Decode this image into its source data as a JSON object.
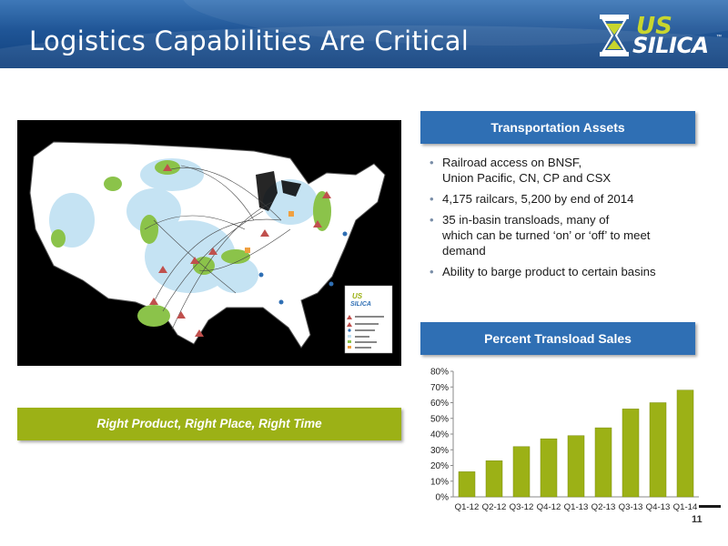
{
  "title": "Logistics Capabilities Are Critical",
  "logo": {
    "line1": "US",
    "line2": "SILICA",
    "tm": "™"
  },
  "map": {
    "logo_line1": "US",
    "logo_line2": "SILICA",
    "legend": [
      "",
      ""
    ]
  },
  "tagline": "Right Product, Right Place, Right Time",
  "transportation": {
    "header": "Transportation Assets",
    "bullets": [
      {
        "lines": [
          "Railroad access on BNSF,",
          "Union Pacific, CN, CP and CSX"
        ]
      },
      {
        "lines": [
          "4,175 railcars, 5,200 by end of 2014"
        ]
      },
      {
        "lines": [
          "35 in-basin transloads, many of",
          "which can be turned ‘on’ or ‘off’ to meet",
          "demand"
        ]
      },
      {
        "lines": [
          "Ability to barge product to certain basins"
        ]
      }
    ]
  },
  "transload": {
    "header": "Percent Transload Sales"
  },
  "chart_data": {
    "type": "bar",
    "categories": [
      "Q1-12",
      "Q2-12",
      "Q3-12",
      "Q4-12",
      "Q1-13",
      "Q2-13",
      "Q3-13",
      "Q4-13",
      "Q1-14"
    ],
    "values": [
      16,
      23,
      32,
      37,
      39,
      44,
      56,
      60,
      68
    ],
    "ylim": [
      0,
      80
    ],
    "yticks": [
      "0%",
      "10%",
      "20%",
      "30%",
      "40%",
      "50%",
      "60%",
      "70%",
      "80%"
    ],
    "grid": false,
    "color": "#9cb116"
  },
  "page_number": "11",
  "colors": {
    "accent_green": "#9cb116",
    "header_blue": "#2f6fb4"
  }
}
